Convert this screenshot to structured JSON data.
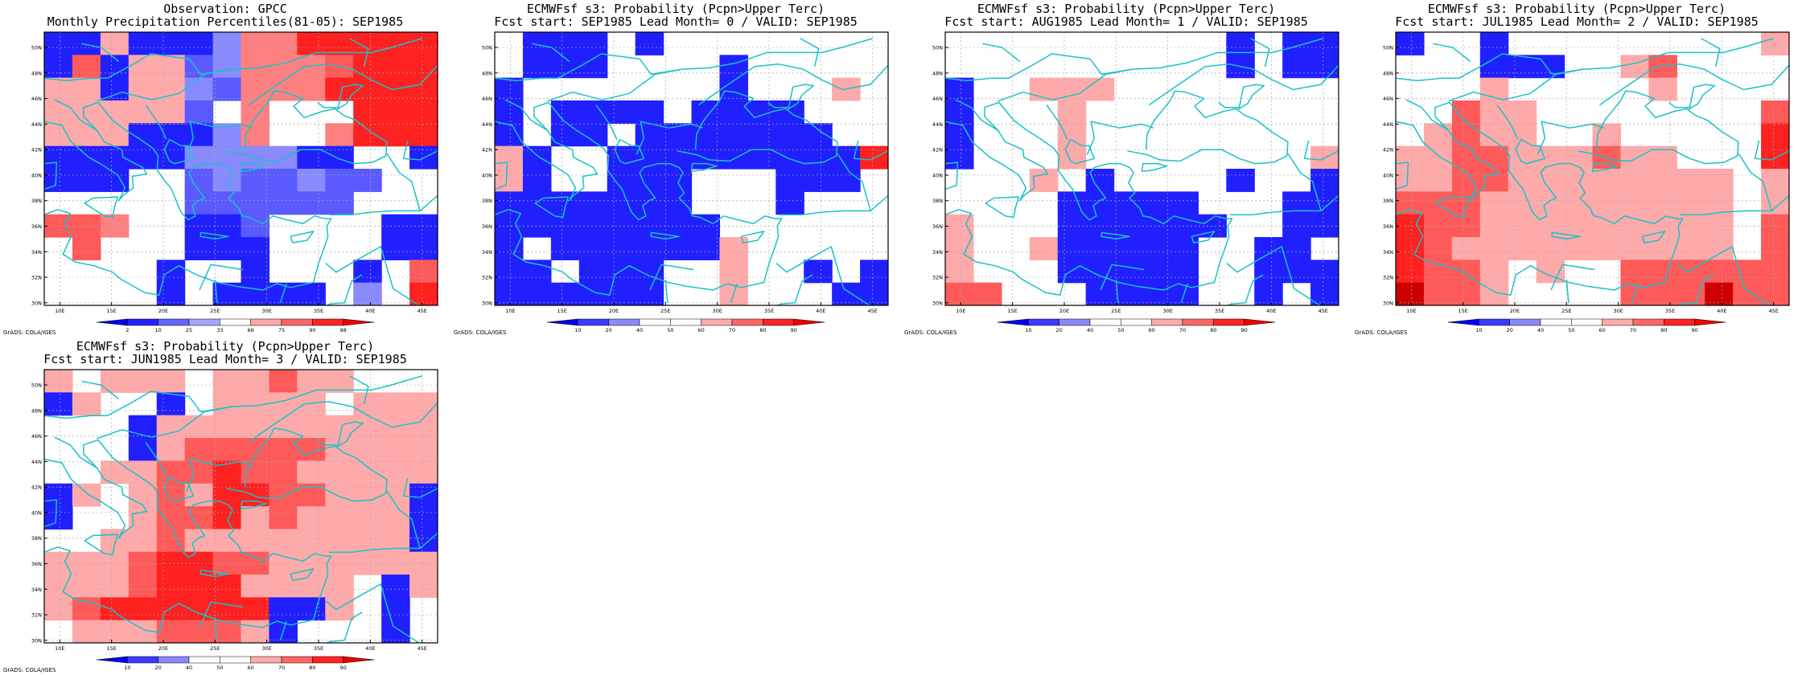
{
  "panels": [
    {
      "title1": "Observation: GPCC",
      "title2": "Monthly Precipitation Percentiles(81-05): SEP1985",
      "credit": "GrADS: COLA/IGES",
      "colorbar": {
        "labels": [
          "2",
          "10",
          "25",
          "33",
          "66",
          "75",
          "90",
          "98"
        ],
        "colors": [
          "#0000ee",
          "#2222ff",
          "#6666ff",
          "#a6a6ff",
          "#ffffff",
          "#ffa6a6",
          "#ff6666",
          "#ff2222",
          "#ee0000"
        ]
      },
      "grid_code": [
        "BBLBBBCPPRRRRR",
        "BMBLLDCPPPMRRR",
        "LLBLLCDPPPRRRR",
        "LLLLLDEPWWWRRR",
        "LLLBBBCPWWPRRR",
        "BBBBBCCCCBBWWB",
        "BBBWWDCDDCDDWW",
        "WWWWWDDDDDDWWW",
        "MMPWWBBDWWWWBB",
        "WMWWWBBBWWWWBB",
        "WWWWBWWBWWWBWM",
        "WWWWBWBBBBWCWR"
      ]
    },
    {
      "title1": "ECMWFsf s3: Probability (Pcpn>Upper Terc)",
      "title2": "Fcst start: SEP1985  Lead Month= 0 / VALID: SEP1985",
      "credit": "GrADS: COLA/IGES",
      "colorbar": {
        "labels": [
          "10",
          "20",
          "40",
          "50",
          "60",
          "70",
          "80",
          "90"
        ],
        "colors": [
          "#0000ee",
          "#3a3aff",
          "#8a8aff",
          "#ffffff",
          "#ffffff",
          "#ffaaaa",
          "#ff6666",
          "#ff2222",
          "#ee0000"
        ]
      },
      "grid_code": [
        "WBBBWBWWWWWWWW",
        "WBBBWWWWBWWWWW",
        "BWWWWWWWBWWWLW",
        "BWBBBBWBBBBWWW",
        "BWBBWBBBBBBBWW",
        "LBWWBBBBBBBBBR",
        "LBWWBBBWWWBBBW",
        "BBBBBBBWWWBWWW",
        "BBBBBBBBWWWWWW",
        "BWBBBBBBLWWWWW",
        "BBWBBBWWLWWBWB",
        "BBBBBBWWLWWWBB"
      ]
    },
    {
      "title1": "ECMWFsf s3: Probability (Pcpn>Upper Terc)",
      "title2": "Fcst start: AUG1985  Lead Month= 1 / VALID: SEP1985",
      "credit": "GrADS: COLA/IGES",
      "colorbar": {
        "labels": [
          "10",
          "20",
          "40",
          "50",
          "60",
          "70",
          "80",
          "90"
        ],
        "colors": [
          "#0000ee",
          "#3a3aff",
          "#8a8aff",
          "#ffffff",
          "#ffffff",
          "#ffaaaa",
          "#ff6666",
          "#ff2222",
          "#ee0000"
        ]
      },
      "grid_code": [
        "WWWWWWWWWWBWBB",
        "WWWWWWWWWWBWBB",
        "BWWLLLWWWWWWWW",
        "BWWWLWWWWWWWWW",
        "BWWWLWWWWWWWWW",
        "BWWWLWWWWWWWWL",
        "WWWLWBWWWWBWWB",
        "WWWWBBBBBWWWBB",
        "LWWWBBBBBBWWBB",
        "LWWLBBBBBWWBBW",
        "LWWWBBBBBWWBBB",
        "MMWWWBBBBWWBWB"
      ]
    },
    {
      "title1": "ECMWFsf s3: Probability (Pcpn>Upper Terc)",
      "title2": "Fcst start: JUL1985  Lead Month= 2 / VALID: SEP1985",
      "credit": "GrADS: COLA/IGES",
      "colorbar": {
        "labels": [
          "10",
          "20",
          "40",
          "50",
          "60",
          "70",
          "80",
          "90"
        ],
        "colors": [
          "#0000ee",
          "#3a3aff",
          "#8a8aff",
          "#ffffff",
          "#ffffff",
          "#ffaaaa",
          "#ff6666",
          "#ff2222",
          "#ee0000"
        ]
      },
      "grid_code": [
        "BWWBWWWWWWWWWL",
        "WWWBBBWWLMWWWW",
        "WWWLWWWWWLWWWW",
        "WWMLLWWWWWWWWM",
        "WLMLLWWLWWWWWR",
        "LLMMLLLMLLWWWR",
        "LLMMLLLLLLLLWL",
        "MMMLLLLLLLLLWL",
        "RMMLLLLLLLLLWM",
        "RMLLLLLLLLLLWM",
        "RMMLWLWWMMMMMM",
        "XMMLWWWWMMMXMM"
      ]
    },
    {
      "title1": "ECMWFsf s3: Probability (Pcpn>Upper Terc)",
      "title2": "Fcst start: JUN1985  Lead Month= 3 / VALID: SEP1985",
      "credit": "GrADS: COLA/IGES",
      "colorbar": {
        "labels": [
          "10",
          "20",
          "40",
          "50",
          "60",
          "70",
          "80",
          "90"
        ],
        "colors": [
          "#0000ee",
          "#3a3aff",
          "#8a8aff",
          "#ffffff",
          "#ffffff",
          "#ffaaaa",
          "#ff6666",
          "#ff2222",
          "#ee0000"
        ]
      },
      "grid_code": [
        "LWLLLWLLMLLWWW",
        "BLWWBWLLLLWLLL",
        "WWWBLLLLLLLLLL",
        "WWWBLMMMMMLLLL",
        "WWLLMMRMMLLLLL",
        "BLWLMLRRMMLLLB",
        "BWWLMMRLMLLLLB",
        "WWLLMLLLLLLLLB",
        "LLLMRRMMLLLLLL",
        "LLLMRRRLLLLWBL",
        "LMRRRRRRBBLWBW",
        "WLLLMMMLBWWWBW"
      ]
    }
  ],
  "map": {
    "lat_ticks": [
      "30N",
      "32N",
      "34N",
      "36N",
      "38N",
      "40N",
      "42N",
      "44N",
      "46N",
      "48N",
      "50N"
    ],
    "lon_ticks": [
      "10E",
      "15E",
      "20E",
      "25E",
      "30E",
      "35E",
      "40E",
      "45E"
    ],
    "coast_color": "#19c2c8"
  }
}
